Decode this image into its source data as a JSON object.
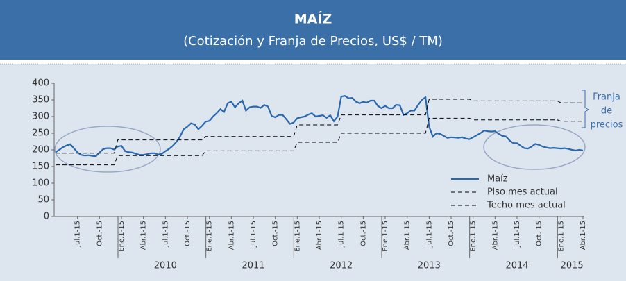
{
  "chart_data": {
    "type": "line",
    "title": "MAÍZ",
    "subtitle": "(Cotización y Franja de Precios, US$ / TM)",
    "annotation": [
      "Franja",
      "de",
      "precios"
    ],
    "legend": "lower right",
    "ylim": [
      0,
      400
    ],
    "yticks": [
      0,
      50,
      100,
      150,
      200,
      250,
      300,
      350,
      400
    ],
    "year_labels": [
      "2010",
      "2011",
      "2012",
      "2013",
      "2014",
      "2015"
    ],
    "categories": [
      null,
      null,
      null,
      null,
      null,
      null,
      "Jul.1-15",
      null,
      null,
      null,
      null,
      null,
      "Oct.-15",
      null,
      null,
      null,
      null,
      null,
      "Ene.1-15",
      null,
      null,
      null,
      null,
      null,
      "Abr.1-15",
      null,
      null,
      null,
      null,
      null,
      "Jul.1-15",
      null,
      null,
      null,
      null,
      null,
      "Oct.-15",
      null,
      null,
      null,
      null,
      null,
      "Ene.1-15",
      null,
      null,
      null,
      null,
      null,
      "Abr.1-15",
      null,
      null,
      null,
      null,
      null,
      "Jul.1-15",
      null,
      null,
      null,
      null,
      null,
      "Oct.-15",
      null,
      null,
      null,
      null,
      null,
      "Ene.1-15",
      null,
      null,
      null,
      null,
      null,
      "Abr.1-15",
      null,
      null,
      null,
      null,
      null,
      "Jul.1-15",
      null,
      null,
      null,
      null,
      null,
      "Oct.-15",
      null,
      null,
      null,
      null,
      null,
      "Ene.1-15",
      null,
      null,
      null,
      null,
      null,
      "Abr.1-15",
      null,
      null,
      null,
      null,
      null,
      "Jul.1-15",
      null,
      null,
      null,
      null,
      null,
      "Oct.-15",
      null,
      null,
      null,
      null,
      null,
      "Ene.1-15",
      null,
      null,
      null,
      null,
      null,
      "Abr.1-15",
      null,
      null,
      null,
      null,
      null,
      "Jul.1-15",
      null,
      null,
      null,
      null,
      null,
      "Oct.-15",
      null,
      null,
      null,
      null,
      null,
      "Ene.1-15",
      null,
      null,
      null,
      null,
      null,
      "Abr.1-15"
    ],
    "series": [
      {
        "name": "Maíz",
        "color": "#2a67ad",
        "dash": false,
        "values": [
          193,
          200,
          208,
          213,
          217,
          205,
          192,
          185,
          183,
          184,
          182,
          181,
          192,
          202,
          205,
          205,
          201,
          210,
          212,
          196,
          193,
          192,
          188,
          185,
          185,
          187,
          190,
          190,
          186,
          188,
          196,
          203,
          212,
          224,
          240,
          262,
          270,
          280,
          276,
          262,
          272,
          285,
          287,
          300,
          310,
          322,
          314,
          340,
          345,
          328,
          340,
          348,
          318,
          328,
          330,
          330,
          326,
          335,
          330,
          302,
          298,
          305,
          305,
          292,
          278,
          282,
          295,
          298,
          300,
          306,
          310,
          300,
          302,
          304,
          296,
          304,
          286,
          300,
          360,
          362,
          355,
          356,
          345,
          340,
          344,
          342,
          348,
          348,
          332,
          325,
          332,
          325,
          325,
          335,
          334,
          305,
          310,
          318,
          318,
          335,
          350,
          358,
          270,
          240,
          250,
          248,
          242,
          236,
          238,
          237,
          236,
          238,
          234,
          232,
          238,
          244,
          250,
          258,
          256,
          255,
          256,
          248,
          242,
          240,
          228,
          220,
          220,
          212,
          205,
          204,
          210,
          218,
          215,
          210,
          207,
          205,
          206,
          205,
          204,
          205,
          203,
          200,
          198,
          200,
          198
        ]
      },
      {
        "name": "Piso mes actual",
        "color": "#000000",
        "dash": true,
        "values": [
          155,
          155,
          155,
          155,
          155,
          155,
          155,
          155,
          155,
          155,
          155,
          155,
          155,
          155,
          155,
          155,
          155,
          183,
          183,
          183,
          183,
          183,
          183,
          183,
          183,
          183,
          183,
          183,
          183,
          183,
          183,
          183,
          183,
          183,
          183,
          183,
          183,
          183,
          183,
          183,
          183,
          197,
          197,
          197,
          197,
          197,
          197,
          197,
          197,
          197,
          197,
          197,
          197,
          197,
          197,
          197,
          197,
          197,
          197,
          197,
          197,
          197,
          197,
          197,
          197,
          197,
          223,
          223,
          223,
          223,
          223,
          223,
          223,
          223,
          223,
          223,
          223,
          223,
          250,
          250,
          250,
          250,
          250,
          250,
          250,
          250,
          250,
          250,
          250,
          250,
          250,
          250,
          250,
          250,
          250,
          250,
          250,
          250,
          250,
          250,
          250,
          250,
          295,
          295,
          295,
          295,
          295,
          295,
          295,
          295,
          295,
          295,
          295,
          295,
          290,
          290,
          290,
          290,
          290,
          290,
          290,
          290,
          290,
          290,
          290,
          290,
          290,
          290,
          290,
          290,
          290,
          290,
          290,
          290,
          290,
          290,
          290,
          290,
          286,
          286,
          286,
          286,
          286,
          286,
          286
        ]
      },
      {
        "name": "Techo mes actual",
        "color": "#000000",
        "dash": true,
        "values": [
          190,
          190,
          190,
          190,
          190,
          190,
          190,
          190,
          190,
          190,
          190,
          190,
          190,
          190,
          190,
          190,
          190,
          230,
          230,
          230,
          230,
          230,
          230,
          230,
          230,
          230,
          230,
          230,
          230,
          230,
          230,
          230,
          230,
          230,
          230,
          230,
          230,
          230,
          230,
          230,
          230,
          240,
          240,
          240,
          240,
          240,
          240,
          240,
          240,
          240,
          240,
          240,
          240,
          240,
          240,
          240,
          240,
          240,
          240,
          240,
          240,
          240,
          240,
          240,
          240,
          240,
          275,
          275,
          275,
          275,
          275,
          275,
          275,
          275,
          275,
          275,
          275,
          275,
          305,
          305,
          305,
          305,
          305,
          305,
          305,
          305,
          305,
          305,
          305,
          305,
          305,
          305,
          305,
          305,
          305,
          305,
          305,
          305,
          305,
          305,
          305,
          305,
          352,
          352,
          352,
          352,
          352,
          352,
          352,
          352,
          352,
          352,
          352,
          352,
          347,
          347,
          347,
          347,
          347,
          347,
          347,
          347,
          347,
          347,
          347,
          347,
          347,
          347,
          347,
          347,
          347,
          347,
          347,
          347,
          347,
          347,
          347,
          347,
          341,
          341,
          341,
          341,
          341,
          341,
          341
        ]
      }
    ]
  }
}
